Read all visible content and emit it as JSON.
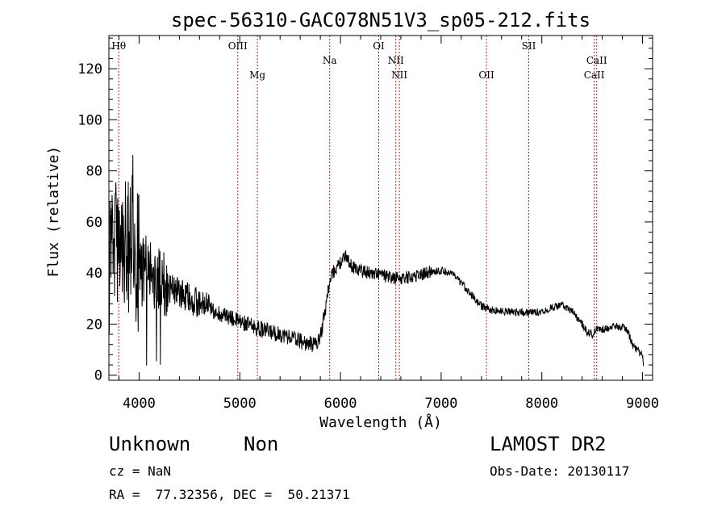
{
  "chart_data": {
    "type": "line",
    "title": "spec-56310-GAC078N51V3_sp05-212.fits",
    "xlabel": "Wavelength (Å)",
    "ylabel": "Flux (relative)",
    "xlim": [
      3700,
      9100
    ],
    "ylim": [
      -2,
      133
    ],
    "xticks": [
      {
        "value": 4000,
        "label": "4000"
      },
      {
        "value": 5000,
        "label": "5000"
      },
      {
        "value": 6000,
        "label": "6000"
      },
      {
        "value": 7000,
        "label": "7000"
      },
      {
        "value": 8000,
        "label": "8000"
      },
      {
        "value": 9000,
        "label": "9000"
      }
    ],
    "yticks": [
      {
        "value": 0,
        "label": "0"
      },
      {
        "value": 20,
        "label": "20"
      },
      {
        "value": 40,
        "label": "40"
      },
      {
        "value": 60,
        "label": "60"
      },
      {
        "value": 80,
        "label": "80"
      },
      {
        "value": 100,
        "label": "100"
      },
      {
        "value": 120,
        "label": "120"
      }
    ],
    "lines": [
      {
        "label": "Hθ",
        "wavelength": 3798,
        "row": "top"
      },
      {
        "label": "OIII",
        "wavelength": 4980,
        "row": "top"
      },
      {
        "label": "Mg",
        "wavelength": 5175,
        "row": "low"
      },
      {
        "label": "Na",
        "wavelength": 5893,
        "row": "mid"
      },
      {
        "label": "OI",
        "wavelength": 6380,
        "row": "top"
      },
      {
        "label": "NII",
        "wavelength": 6550,
        "row": "mid"
      },
      {
        "label": "NII",
        "wavelength": 6585,
        "row": "low"
      },
      {
        "label": "OII",
        "wavelength": 7450,
        "row": "low"
      },
      {
        "label": "SII",
        "wavelength": 7870,
        "row": "top"
      },
      {
        "label": "CaII",
        "wavelength": 8520,
        "row": "low"
      },
      {
        "label": "CaII",
        "wavelength": 8545,
        "row": "mid"
      }
    ],
    "continuum": [
      [
        3700,
        62
      ],
      [
        3800,
        56
      ],
      [
        3900,
        52
      ],
      [
        4000,
        44
      ],
      [
        4100,
        40
      ],
      [
        4200,
        37
      ],
      [
        4300,
        34
      ],
      [
        4400,
        32
      ],
      [
        4500,
        30
      ],
      [
        4600,
        28
      ],
      [
        4700,
        26
      ],
      [
        4800,
        24
      ],
      [
        4900,
        22.5
      ],
      [
        5000,
        21
      ],
      [
        5100,
        19.5
      ],
      [
        5200,
        18
      ],
      [
        5300,
        17
      ],
      [
        5400,
        16
      ],
      [
        5500,
        15
      ],
      [
        5600,
        13.5
      ],
      [
        5700,
        12
      ],
      [
        5780,
        13
      ],
      [
        5820,
        19
      ],
      [
        5850,
        26
      ],
      [
        5880,
        34
      ],
      [
        5920,
        40
      ],
      [
        6000,
        44
      ],
      [
        6060,
        47
      ],
      [
        6100,
        43
      ],
      [
        6200,
        41
      ],
      [
        6300,
        40
      ],
      [
        6400,
        39.5
      ],
      [
        6500,
        38
      ],
      [
        6600,
        38
      ],
      [
        6700,
        38.5
      ],
      [
        6800,
        39.5
      ],
      [
        6900,
        40.5
      ],
      [
        7000,
        41
      ],
      [
        7100,
        40
      ],
      [
        7150,
        38
      ],
      [
        7250,
        34
      ],
      [
        7350,
        29
      ],
      [
        7400,
        27
      ],
      [
        7500,
        25.5
      ],
      [
        7600,
        25
      ],
      [
        7700,
        25
      ],
      [
        7800,
        24.5
      ],
      [
        7900,
        24.5
      ],
      [
        8000,
        25
      ],
      [
        8100,
        26.5
      ],
      [
        8200,
        27.5
      ],
      [
        8300,
        25
      ],
      [
        8400,
        20
      ],
      [
        8450,
        17
      ],
      [
        8500,
        16
      ],
      [
        8550,
        18
      ],
      [
        8600,
        18
      ],
      [
        8700,
        19
      ],
      [
        8800,
        19
      ],
      [
        8850,
        17.5
      ],
      [
        8900,
        12
      ],
      [
        9000,
        7.5
      ],
      [
        9010,
        2
      ]
    ],
    "line_color": "#000000",
    "marker_color": "#b22222"
  },
  "info": {
    "object_class": "Unknown",
    "object_subclass": "Non",
    "survey": "LAMOST DR2",
    "cz": "cz = NaN",
    "obs_date": "Obs-Date: 20130117",
    "radec": "RA =  77.32356, DEC =  50.21371"
  }
}
